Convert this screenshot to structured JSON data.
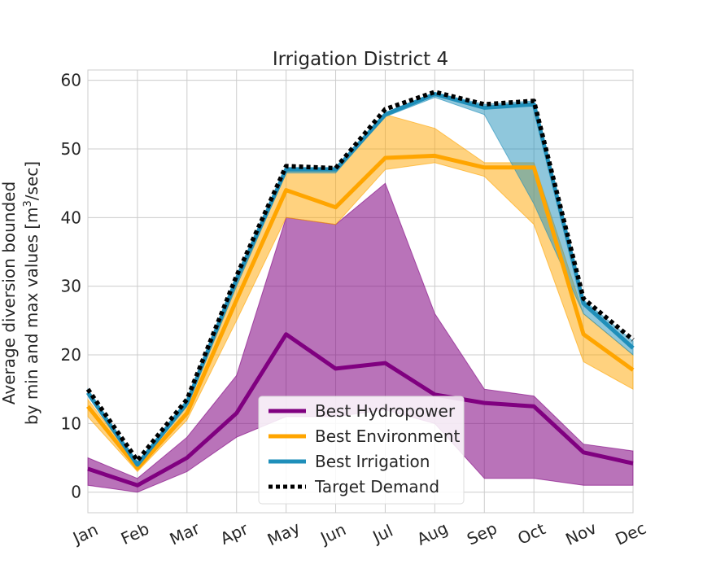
{
  "chart_data": {
    "type": "line",
    "title": "Irrigation District 4",
    "ylabel_line1": "Average diversion bounded",
    "ylabel_line2_prefix": "by min and max values [m",
    "ylabel_line2_sup": "3",
    "ylabel_line2_suffix": "/sec]",
    "xlabel": "",
    "categories": [
      "Jan",
      "Feb",
      "Mar",
      "Apr",
      "May",
      "Jun",
      "Jul",
      "Aug",
      "Sep",
      "Oct",
      "Nov",
      "Dec"
    ],
    "ylim": [
      -3,
      61.5
    ],
    "yticks": [
      0,
      10,
      20,
      30,
      40,
      50,
      60
    ],
    "grid": true,
    "legend_position": "lower-center",
    "series": [
      {
        "name": "Best Hydropower",
        "color": "#800080",
        "style": "solid",
        "values": [
          3.4,
          1.0,
          5.0,
          11.5,
          23.0,
          18.0,
          18.8,
          14.2,
          13.0,
          12.5,
          5.8,
          4.2
        ],
        "min": [
          1.0,
          0.0,
          3.0,
          8.0,
          11.0,
          11.0,
          12.0,
          10.0,
          2.0,
          2.0,
          1.0,
          1.0
        ],
        "max": [
          5.0,
          2.0,
          8.0,
          17.0,
          40.0,
          39.0,
          45.0,
          26.0,
          15.0,
          14.0,
          7.0,
          6.0
        ]
      },
      {
        "name": "Best Environment",
        "color": "#FFA500",
        "style": "solid",
        "values": [
          12.5,
          3.5,
          11.5,
          28.0,
          44.0,
          41.5,
          48.7,
          49.0,
          47.3,
          47.3,
          23.0,
          17.8
        ],
        "min": [
          11.0,
          3.0,
          10.5,
          25.0,
          40.0,
          39.0,
          47.0,
          48.0,
          46.0,
          39.0,
          19.0,
          15.0
        ],
        "max": [
          13.5,
          4.0,
          12.5,
          30.0,
          47.0,
          47.0,
          55.0,
          53.0,
          48.0,
          48.0,
          26.0,
          20.0
        ]
      },
      {
        "name": "Best Irrigation",
        "color": "#1F8FBA",
        "style": "solid",
        "values": [
          14.5,
          4.0,
          13.0,
          31.0,
          47.0,
          47.0,
          55.0,
          58.0,
          56.0,
          56.5,
          27.5,
          21.0
        ],
        "min": [
          14.0,
          3.7,
          12.5,
          30.0,
          46.5,
          46.5,
          54.7,
          57.5,
          55.0,
          42.0,
          26.0,
          20.0
        ],
        "max": [
          15.0,
          4.3,
          13.5,
          31.5,
          47.3,
          47.3,
          55.3,
          58.2,
          56.5,
          57.0,
          28.0,
          22.0
        ]
      },
      {
        "name": "Target Demand",
        "color": "#000000",
        "style": "dotted",
        "values": [
          15.0,
          4.6,
          13.5,
          31.5,
          47.5,
          47.2,
          55.8,
          58.3,
          56.5,
          57.0,
          28.2,
          22.2
        ]
      }
    ]
  }
}
